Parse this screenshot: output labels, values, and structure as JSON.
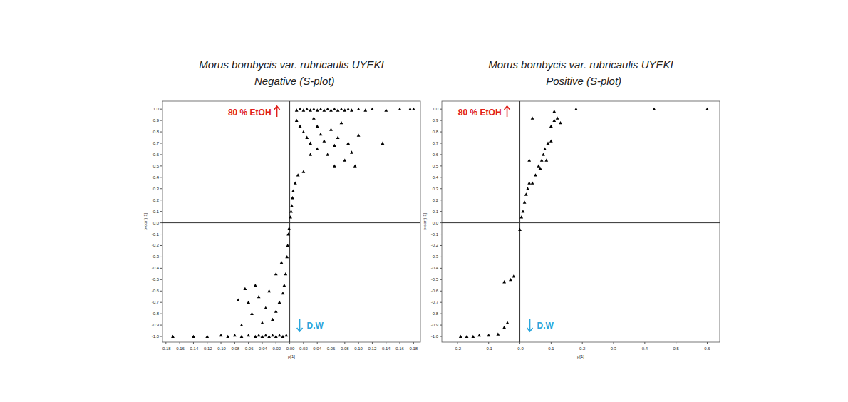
{
  "chart_data": [
    {
      "type": "scatter",
      "title": "Morus bombycis var. rubricaulis UYEKI",
      "subtitle": "_Negative (S-plot)",
      "x_label": "p[1]",
      "y_label": "p(corr)[1]",
      "marker": "triangle",
      "color": "#000000",
      "grid": false,
      "annotations": [
        {
          "text": "80 % EtOH",
          "color": "#e0201a",
          "direction": "up"
        },
        {
          "text": "D.W",
          "color": "#2aa6dc",
          "direction": "down"
        }
      ],
      "xlim": [
        -0.185,
        0.19
      ],
      "ylim": [
        -1.05,
        1.07
      ],
      "xticks": [
        -0.18,
        -0.16,
        -0.14,
        -0.12,
        {
          "value": -0.1,
          "label": "-0.10"
        },
        -0.08,
        -0.06,
        -0.04,
        -0.02,
        {
          "value": 0,
          "label": "-0.00"
        },
        0.02,
        0.04,
        0.06,
        0.08,
        {
          "value": 0.1,
          "label": "0.10"
        },
        0.12,
        0.14,
        0.16,
        0.18
      ],
      "yticks": [
        {
          "value": -1,
          "label": "-1.0"
        },
        -0.9,
        -0.8,
        -0.7,
        -0.6,
        -0.5,
        -0.4,
        -0.3,
        -0.2,
        -0.1,
        {
          "value": 0,
          "label": "0.0"
        },
        0.1,
        0.2,
        0.3,
        0.4,
        0.5,
        0.6,
        0.7,
        0.8,
        0.9,
        {
          "value": 1,
          "label": "1.0"
        }
      ],
      "x": [
        0.01,
        0.015,
        0.02,
        0.025,
        0.03,
        0.035,
        0.04,
        0.045,
        0.05,
        0.055,
        0.06,
        0.065,
        0.07,
        0.075,
        0.08,
        0.085,
        0.09,
        0.1,
        0.11,
        0.12,
        0.14,
        0.16,
        0.175,
        0.18,
        0.01,
        0.015,
        0.02,
        0.025,
        0.03,
        0.035,
        0.04,
        0.045,
        0.05,
        0.055,
        0.06,
        0.065,
        0.07,
        0.075,
        0.08,
        0.085,
        0.09,
        0.095,
        0.1,
        0.065,
        0.135,
        0.04,
        0.03,
        0.02,
        0.012,
        0.008,
        0.005,
        0.004,
        0.003,
        0.002,
        0.001,
        -0.001,
        -0.002,
        -0.003,
        -0.004,
        -0.006,
        -0.008,
        -0.01,
        -0.015,
        -0.02,
        -0.025,
        -0.03,
        -0.035,
        -0.04,
        -0.045,
        -0.05,
        -0.055,
        -0.06,
        -0.065,
        -0.07,
        -0.075,
        -0.02,
        -0.012,
        -0.005,
        -0.01,
        -0.015,
        -0.02,
        -0.025,
        -0.03,
        -0.035,
        -0.04,
        -0.045,
        -0.05,
        -0.06,
        -0.07,
        -0.08,
        -0.09,
        -0.1,
        -0.12,
        -0.14,
        -0.17
      ],
      "values": [
        0.99,
        1.0,
        0.99,
        1.0,
        0.99,
        1.0,
        0.99,
        1.0,
        0.99,
        1.0,
        0.99,
        1.0,
        0.99,
        1.0,
        0.99,
        1.0,
        0.99,
        1.0,
        0.99,
        1.0,
        0.99,
        1.0,
        1.0,
        1.0,
        0.9,
        0.85,
        0.8,
        0.75,
        0.7,
        0.92,
        0.65,
        0.78,
        0.72,
        0.6,
        0.82,
        0.68,
        0.75,
        0.88,
        0.55,
        0.7,
        0.62,
        0.5,
        0.77,
        0.5,
        0.7,
        0.85,
        0.6,
        0.45,
        0.42,
        0.35,
        0.28,
        0.22,
        0.15,
        0.1,
        0.05,
        -0.05,
        -0.1,
        -0.2,
        -0.3,
        -0.45,
        -0.55,
        -0.62,
        -0.7,
        -0.78,
        -0.85,
        -0.6,
        -0.75,
        -0.88,
        -0.65,
        -0.55,
        -0.8,
        -0.7,
        -0.58,
        -0.9,
        -0.68,
        -0.45,
        -0.35,
        -0.99,
        -1.0,
        -0.99,
        -1.0,
        -0.99,
        -1.0,
        -0.99,
        -1.0,
        -0.99,
        -1.0,
        -0.99,
        -1.0,
        -0.99,
        -1.0,
        -0.99,
        -1.0,
        -1.0,
        -1.0
      ]
    },
    {
      "type": "scatter",
      "title": "Morus bombycis var. rubricaulis UYEKI",
      "subtitle": "_Positive (S-plot)",
      "x_label": "p[1]",
      "y_label": "p(corr)[1]",
      "marker": "triangle",
      "color": "#000000",
      "grid": false,
      "annotations": [
        {
          "text": "80 % EtOH",
          "color": "#e0201a",
          "direction": "up"
        },
        {
          "text": "D.W",
          "color": "#2aa6dc",
          "direction": "down"
        }
      ],
      "xlim": [
        -0.25,
        0.64
      ],
      "ylim": [
        -1.05,
        1.07
      ],
      "xticks": [
        -0.2,
        -0.1,
        {
          "value": 0,
          "label": "-0.0"
        },
        0.1,
        0.2,
        0.3,
        0.4,
        0.5,
        0.6
      ],
      "yticks": [
        {
          "value": -1,
          "label": "-1.0"
        },
        -0.9,
        -0.8,
        -0.7,
        -0.6,
        -0.5,
        -0.4,
        -0.3,
        -0.2,
        -0.1,
        {
          "value": 0,
          "label": "0.0"
        },
        0.1,
        0.2,
        0.3,
        0.4,
        0.5,
        0.6,
        0.7,
        0.8,
        0.9,
        {
          "value": 1,
          "label": "1.0"
        }
      ],
      "x": [
        0.005,
        0.01,
        0.015,
        0.02,
        0.025,
        0.03,
        0.04,
        0.05,
        0.06,
        0.065,
        0.07,
        0.075,
        0.08,
        0.085,
        0.09,
        0.1,
        0.1,
        0.11,
        0.11,
        0.12,
        0.13,
        0.04,
        0.03,
        0.18,
        0.43,
        0.6,
        0.0,
        -0.02,
        -0.03,
        -0.05,
        -0.04,
        -0.05,
        -0.07,
        -0.1,
        -0.13,
        -0.15,
        -0.17,
        -0.19
      ],
      "values": [
        0.05,
        0.1,
        0.18,
        0.25,
        0.3,
        0.35,
        0.35,
        0.42,
        0.5,
        0.48,
        0.55,
        0.6,
        0.65,
        0.55,
        0.7,
        0.72,
        0.85,
        0.9,
        0.98,
        0.92,
        0.88,
        0.92,
        0.55,
        1.0,
        1.0,
        1.0,
        -0.06,
        -0.47,
        -0.5,
        -0.52,
        -0.88,
        -0.92,
        -0.98,
        -0.99,
        -0.99,
        -1.0,
        -1.0,
        -1.0
      ]
    }
  ]
}
